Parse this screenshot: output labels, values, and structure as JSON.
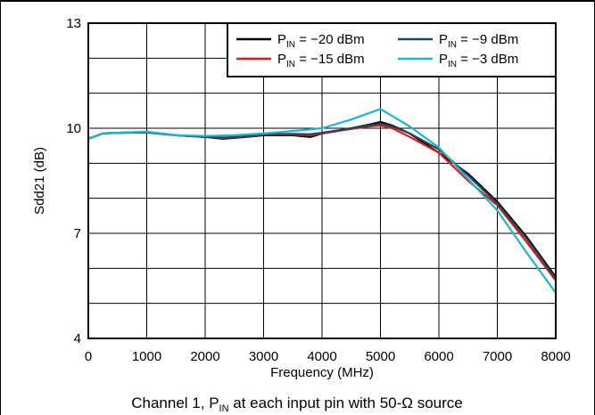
{
  "chart_data": {
    "type": "line",
    "xlabel": "Frequency (MHz)",
    "ylabel": "Sdd21 (dB)",
    "xlim": [
      0,
      8000
    ],
    "ylim": [
      4,
      13
    ],
    "x_ticks": [
      0,
      1000,
      2000,
      3000,
      4000,
      5000,
      6000,
      7000,
      8000
    ],
    "y_ticks": [
      4,
      7,
      10,
      13
    ],
    "grid": true,
    "legend_position": "top-right",
    "legend_columns": 2,
    "caption": {
      "prefix": "Channel 1, P",
      "subscript": "IN",
      "suffix": " at each input pin with 50-Ω source"
    },
    "series": [
      {
        "name": "P_IN = −20 dBm",
        "label_main": "P",
        "label_sub": "IN",
        "label_rest": " = −20 dBm",
        "color": "#000000",
        "x": [
          0,
          250,
          500,
          1000,
          1500,
          2000,
          2300,
          2700,
          3000,
          3500,
          3800,
          4000,
          4500,
          4800,
          5000,
          5200,
          5500,
          6000,
          6500,
          7000,
          7500,
          8000
        ],
        "y": [
          9.7,
          9.85,
          9.87,
          9.88,
          9.8,
          9.75,
          9.7,
          9.75,
          9.8,
          9.8,
          9.75,
          9.85,
          10.0,
          10.1,
          10.18,
          10.08,
          9.85,
          9.3,
          8.7,
          7.9,
          6.9,
          5.75
        ]
      },
      {
        "name": "P_IN = −15 dBm",
        "label_main": "P",
        "label_sub": "IN",
        "label_rest": " = −15 dBm",
        "color": "#e8171c",
        "x": [
          0,
          250,
          500,
          1000,
          1500,
          2000,
          2300,
          2700,
          3000,
          3500,
          3800,
          4000,
          4500,
          4800,
          5000,
          5200,
          5500,
          6000,
          6500,
          7000,
          7500,
          8000
        ],
        "y": [
          9.7,
          9.85,
          9.87,
          9.88,
          9.8,
          9.75,
          9.72,
          9.76,
          9.82,
          9.82,
          9.8,
          9.85,
          9.98,
          10.05,
          10.08,
          10.0,
          9.75,
          9.3,
          8.5,
          7.8,
          6.75,
          5.65
        ]
      },
      {
        "name": "P_IN = −9 dBm",
        "label_main": "P",
        "label_sub": "IN",
        "label_rest": " = −9 dBm",
        "color": "#1a4a5c",
        "x": [
          0,
          250,
          500,
          1000,
          1500,
          2000,
          2300,
          2700,
          3000,
          3500,
          3800,
          4000,
          4500,
          4800,
          5000,
          5200,
          5500,
          6000,
          6500,
          7000,
          7500,
          8000
        ],
        "y": [
          9.7,
          9.85,
          9.87,
          9.88,
          9.8,
          9.75,
          9.73,
          9.77,
          9.83,
          9.84,
          9.83,
          9.87,
          10.0,
          10.08,
          10.13,
          10.05,
          9.85,
          9.4,
          8.65,
          7.85,
          6.85,
          5.7
        ]
      },
      {
        "name": "P_IN = −3 dBm",
        "label_main": "P",
        "label_sub": "IN",
        "label_rest": " = −3 dBm",
        "color": "#1ab7cc",
        "x": [
          0,
          250,
          500,
          1000,
          1500,
          2000,
          2500,
          3000,
          3500,
          4000,
          4500,
          5000,
          5500,
          6000,
          6500,
          7000,
          7500,
          8000
        ],
        "y": [
          9.7,
          9.85,
          9.87,
          9.9,
          9.8,
          9.78,
          9.8,
          9.85,
          9.92,
          10.0,
          10.25,
          10.55,
          10.05,
          9.45,
          8.55,
          7.65,
          6.45,
          5.3
        ]
      }
    ]
  }
}
